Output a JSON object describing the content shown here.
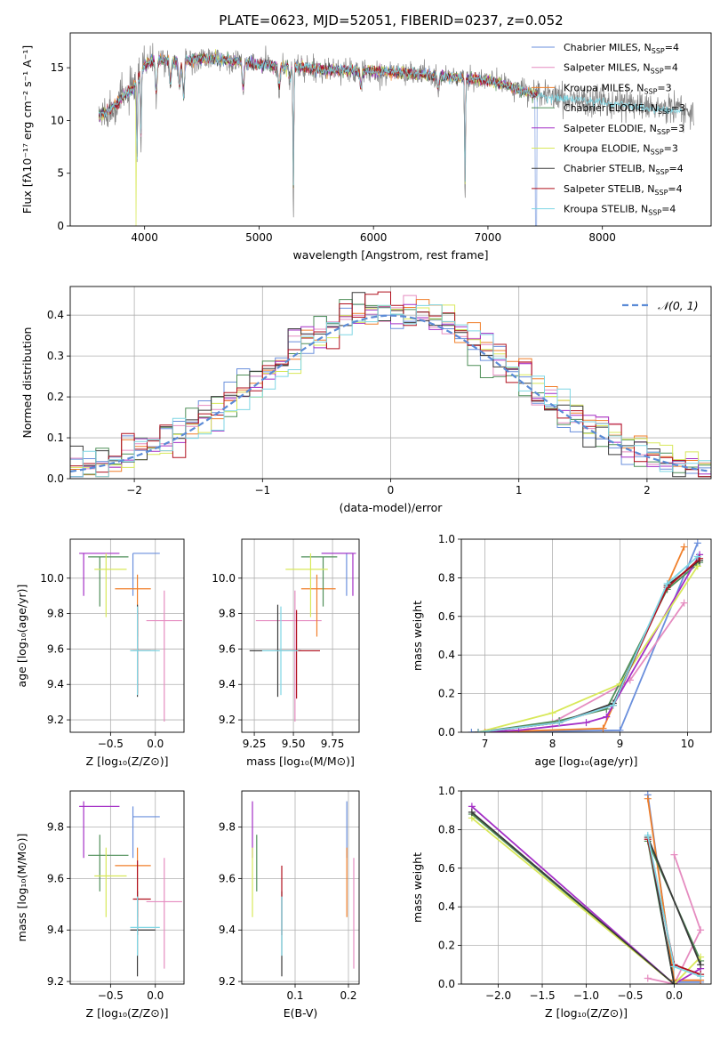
{
  "title": "PLATE=0623, MJD=52051, FIBERID=0237, z=0.052",
  "models": [
    {
      "name": "Chabrier MILES",
      "nssp": "4",
      "color": "#6a8fdc"
    },
    {
      "name": "Salpeter MILES",
      "nssp": "4",
      "color": "#e58cc0"
    },
    {
      "name": "Kroupa MILES",
      "nssp": "3",
      "color": "#f07f2a"
    },
    {
      "name": "Chabrier ELODIE",
      "nssp": "3",
      "color": "#4f8f58"
    },
    {
      "name": "Salpeter ELODIE",
      "nssp": "3",
      "color": "#a42fc6"
    },
    {
      "name": "Kroupa ELODIE",
      "nssp": "3",
      "color": "#d8e85a"
    },
    {
      "name": "Chabrier STELIB",
      "nssp": "4",
      "color": "#3a3a3a"
    },
    {
      "name": "Salpeter STELIB",
      "nssp": "4",
      "color": "#b0101e"
    },
    {
      "name": "Kroupa STELIB",
      "nssp": "4",
      "color": "#7fd6e4"
    }
  ],
  "legend_sub": "SSP",
  "legend_prefix": "N",
  "chart_data": [
    {
      "id": "spectrum",
      "type": "line",
      "title": "PLATE=0623, MJD=52051, FIBERID=0237, z=0.052",
      "xlabel": "wavelength [Angstrom, rest frame]",
      "ylabel": "Flux [fλ10⁻¹⁷ erg cm⁻² s⁻¹ A⁻¹]",
      "xlim": [
        3350,
        8950
      ],
      "ylim": [
        0,
        18.3
      ],
      "xticks": [
        4000,
        5000,
        6000,
        7000,
        8000
      ],
      "yticks": [
        0,
        5,
        10,
        15
      ],
      "data_color": "#808080",
      "data_range": [
        3600,
        8800
      ],
      "anchors_x": [
        3600,
        3700,
        3800,
        3900,
        4000,
        4100,
        4300,
        4500,
        4800,
        5000,
        5300,
        5600,
        6000,
        6400,
        6800,
        7000,
        7200,
        7400,
        7600,
        7800,
        8000,
        8200,
        8400,
        8600,
        8800
      ],
      "anchors_y": [
        10.5,
        11.0,
        12.2,
        13.0,
        15.3,
        15.8,
        15.6,
        15.9,
        15.6,
        15.3,
        15.1,
        14.8,
        14.7,
        14.4,
        14.0,
        13.8,
        13.2,
        12.5,
        12.2,
        12.0,
        11.8,
        11.6,
        11.2,
        11.0,
        10.8
      ],
      "absorption": [
        [
          3934,
          9
        ],
        [
          3968,
          8
        ],
        [
          4101,
          4
        ],
        [
          4226,
          2.5
        ],
        [
          4305,
          3
        ],
        [
          4340,
          4
        ],
        [
          4861,
          3
        ],
        [
          5175,
          2.5
        ],
        [
          5270,
          1.5
        ],
        [
          5300,
          14
        ],
        [
          5890,
          2
        ],
        [
          6563,
          1.5
        ],
        [
          6800,
          12
        ]
      ]
    },
    {
      "id": "residuals",
      "type": "histogram",
      "xlabel": "(data-model)/error",
      "ylabel": "Normed distribution",
      "xlim": [
        -2.5,
        2.5
      ],
      "ylim": [
        0,
        0.47
      ],
      "xticks": [
        -2,
        -1,
        0,
        1,
        2
      ],
      "yticks": [
        0,
        0.1,
        0.2,
        0.3,
        0.4
      ],
      "bin_width": 0.1,
      "reference": {
        "name": "𝒩(0, 1)",
        "color": "#5b8bd6"
      }
    },
    {
      "id": "age_vs_Z",
      "type": "errorbar",
      "xlabel": "Z [log₁₀(Z/Z⊙)]",
      "ylabel": "age  [log₁₀(age/yr)]",
      "xlim": [
        -0.95,
        0.32
      ],
      "ylim": [
        9.13,
        10.22
      ],
      "xticks": [
        -0.5,
        0.0
      ],
      "yticks": [
        9.2,
        9.4,
        9.6,
        9.8,
        10.0
      ],
      "points": [
        {
          "m": 0,
          "x": -0.25,
          "y": 10.14,
          "xe": [
            -0.25,
            0.05
          ],
          "ye": [
            9.9,
            10.14
          ]
        },
        {
          "m": 1,
          "x": 0.1,
          "y": 9.76,
          "xe": [
            -0.1,
            0.3
          ],
          "ye": [
            9.19,
            9.93
          ]
        },
        {
          "m": 2,
          "x": -0.2,
          "y": 9.94,
          "xe": [
            -0.45,
            -0.05
          ],
          "ye": [
            9.67,
            10.02
          ]
        },
        {
          "m": 3,
          "x": -0.62,
          "y": 10.12,
          "xe": [
            -0.75,
            -0.3
          ],
          "ye": [
            9.84,
            10.12
          ]
        },
        {
          "m": 4,
          "x": -0.8,
          "y": 10.14,
          "xe": [
            -0.85,
            -0.4
          ],
          "ye": [
            9.9,
            10.14
          ]
        },
        {
          "m": 5,
          "x": -0.55,
          "y": 10.05,
          "xe": [
            -0.68,
            -0.32
          ],
          "ye": [
            9.78,
            10.14
          ]
        },
        {
          "m": 6,
          "x": -0.2,
          "y": 9.59,
          "xe": [
            -0.28,
            0.0
          ],
          "ye": [
            9.33,
            9.85
          ]
        },
        {
          "m": 7,
          "x": -0.2,
          "y": 9.59,
          "xe": [
            -0.25,
            -0.05
          ],
          "ye": [
            9.35,
            9.82
          ]
        },
        {
          "m": 8,
          "x": -0.2,
          "y": 9.59,
          "xe": [
            -0.28,
            0.05
          ],
          "ye": [
            9.34,
            9.84
          ]
        }
      ]
    },
    {
      "id": "age_vs_mass",
      "type": "errorbar",
      "xlabel": "mass [log₁₀(M/M⊙)]",
      "ylabel": "",
      "xlim": [
        9.17,
        9.92
      ],
      "ylim": [
        9.13,
        10.22
      ],
      "xticks": [
        9.25,
        9.5,
        9.75
      ],
      "yticks": [
        9.2,
        9.4,
        9.6,
        9.8,
        10.0
      ],
      "points": [
        {
          "m": 0,
          "x": 9.84,
          "y": 10.14,
          "xe": [
            9.68,
            9.88
          ],
          "ye": [
            9.9,
            10.14
          ]
        },
        {
          "m": 1,
          "x": 9.51,
          "y": 9.76,
          "xe": [
            9.26,
            9.68
          ],
          "ye": [
            9.19,
            9.93
          ]
        },
        {
          "m": 2,
          "x": 9.65,
          "y": 9.94,
          "xe": [
            9.55,
            9.77
          ],
          "ye": [
            9.67,
            10.02
          ]
        },
        {
          "m": 3,
          "x": 9.69,
          "y": 10.12,
          "xe": [
            9.55,
            9.78
          ],
          "ye": [
            9.84,
            10.12
          ]
        },
        {
          "m": 4,
          "x": 9.88,
          "y": 10.14,
          "xe": [
            9.68,
            9.9
          ],
          "ye": [
            9.9,
            10.14
          ]
        },
        {
          "m": 5,
          "x": 9.61,
          "y": 10.05,
          "xe": [
            9.45,
            9.72
          ],
          "ye": [
            9.78,
            10.14
          ]
        },
        {
          "m": 6,
          "x": 9.4,
          "y": 9.59,
          "xe": [
            9.22,
            9.55
          ],
          "ye": [
            9.33,
            9.85
          ]
        },
        {
          "m": 7,
          "x": 9.52,
          "y": 9.59,
          "xe": [
            9.38,
            9.67
          ],
          "ye": [
            9.32,
            9.82
          ]
        },
        {
          "m": 8,
          "x": 9.42,
          "y": 9.59,
          "xe": [
            9.3,
            9.53
          ],
          "ye": [
            9.34,
            9.84
          ]
        }
      ]
    },
    {
      "id": "mass_weight_vs_age",
      "type": "line",
      "xlabel": "age  [log₁₀(age/yr)]",
      "ylabel": "mass weight",
      "xlim": [
        6.65,
        10.35
      ],
      "ylim": [
        0,
        1.0
      ],
      "xticks": [
        7,
        8,
        9,
        10
      ],
      "yticks": [
        0,
        0.2,
        0.4,
        0.6,
        0.8,
        1.0
      ],
      "series": [
        {
          "m": 0,
          "x": [
            6.8,
            9.0,
            10.15
          ],
          "y": [
            0.0,
            0.01,
            0.98
          ]
        },
        {
          "m": 1,
          "x": 7.0,
          "note": "",
          "xs": [
            7.0,
            8.0,
            9.15,
            9.95
          ],
          "ys": [
            0.0,
            0.05,
            0.27,
            0.67
          ]
        },
        {
          "m": 2,
          "xs": [
            7.0,
            8.75,
            9.95
          ],
          "ys": [
            0.0,
            0.02,
            0.96
          ]
        },
        {
          "m": 3,
          "xs": [
            6.9,
            8.1,
            8.8,
            9.7,
            10.18
          ],
          "ys": [
            0.0,
            0.06,
            0.12,
            0.74,
            0.88
          ]
        },
        {
          "m": 4,
          "xs": [
            6.9,
            7.5,
            8.5,
            8.8,
            10.18
          ],
          "ys": [
            0.0,
            0.01,
            0.05,
            0.08,
            0.92
          ]
        },
        {
          "m": 5,
          "xs": [
            6.9,
            8.0,
            9.0,
            10.15
          ],
          "ys": [
            0.0,
            0.1,
            0.25,
            0.86
          ]
        },
        {
          "m": 6,
          "xs": [
            6.9,
            8.1,
            8.9,
            9.7,
            10.18
          ],
          "ys": [
            0.0,
            0.05,
            0.15,
            0.76,
            0.89
          ]
        },
        {
          "m": 7,
          "xs": [
            6.9,
            8.1,
            8.9,
            9.7,
            10.18
          ],
          "ys": [
            0.0,
            0.05,
            0.14,
            0.75,
            0.9
          ]
        },
        {
          "m": 8,
          "xs": [
            6.9,
            8.1,
            8.9,
            9.7,
            10.15
          ],
          "ys": [
            0.0,
            0.05,
            0.14,
            0.77,
            0.91
          ]
        }
      ]
    },
    {
      "id": "mass_vs_Z",
      "type": "errorbar",
      "xlabel": "Z [log₁₀(Z/Z⊙)]",
      "ylabel": "mass [log₁₀(M/M⊙)]",
      "xlim": [
        -0.95,
        0.32
      ],
      "ylim": [
        9.19,
        9.94
      ],
      "xticks": [
        -0.5,
        0.0
      ],
      "yticks": [
        9.2,
        9.4,
        9.6,
        9.8
      ],
      "points": [
        {
          "m": 0,
          "x": -0.25,
          "y": 9.84,
          "xe": [
            -0.25,
            0.05
          ],
          "ye": [
            9.68,
            9.88
          ]
        },
        {
          "m": 1,
          "x": 0.1,
          "y": 9.51,
          "xe": [
            -0.1,
            0.3
          ],
          "ye": [
            9.25,
            9.68
          ]
        },
        {
          "m": 2,
          "x": -0.2,
          "y": 9.65,
          "xe": [
            -0.45,
            -0.05
          ],
          "ye": [
            9.45,
            9.72
          ]
        },
        {
          "m": 3,
          "x": -0.62,
          "y": 9.69,
          "xe": [
            -0.75,
            -0.3
          ],
          "ye": [
            9.55,
            9.77
          ]
        },
        {
          "m": 4,
          "x": -0.8,
          "y": 9.88,
          "xe": [
            -0.85,
            -0.4
          ],
          "ye": [
            9.68,
            9.9
          ]
        },
        {
          "m": 5,
          "x": -0.55,
          "y": 9.61,
          "xe": [
            -0.68,
            -0.32
          ],
          "ye": [
            9.45,
            9.72
          ]
        },
        {
          "m": 6,
          "x": -0.2,
          "y": 9.4,
          "xe": [
            -0.28,
            0.0
          ],
          "ye": [
            9.22,
            9.55
          ]
        },
        {
          "m": 7,
          "x": -0.2,
          "y": 9.52,
          "xe": [
            -0.25,
            -0.05
          ],
          "ye": [
            9.38,
            9.67
          ]
        },
        {
          "m": 8,
          "x": -0.2,
          "y": 9.41,
          "xe": [
            -0.28,
            0.05
          ],
          "ye": [
            9.3,
            9.53
          ]
        }
      ]
    },
    {
      "id": "mass_vs_ebv",
      "type": "errorbar",
      "xlabel": "E(B-V)",
      "ylabel": "",
      "xlim": [
        0.0,
        0.22
      ],
      "ylim": [
        9.19,
        9.94
      ],
      "xticks": [
        0.1,
        0.2
      ],
      "yticks": [
        9.2,
        9.4,
        9.6,
        9.8
      ],
      "points": [
        {
          "m": 0,
          "x": 0.197,
          "y": 9.84,
          "ye": [
            9.68,
            9.9
          ]
        },
        {
          "m": 1,
          "x": 0.21,
          "y": 9.51,
          "ye": [
            9.25,
            9.68
          ]
        },
        {
          "m": 2,
          "x": 0.197,
          "y": 9.65,
          "ye": [
            9.45,
            9.72
          ]
        },
        {
          "m": 3,
          "x": 0.028,
          "y": 9.69,
          "ye": [
            9.55,
            9.77
          ]
        },
        {
          "m": 4,
          "x": 0.02,
          "y": 9.88,
          "ye": [
            9.68,
            9.9
          ]
        },
        {
          "m": 5,
          "x": 0.02,
          "y": 9.61,
          "ye": [
            9.45,
            9.72
          ]
        },
        {
          "m": 6,
          "x": 0.075,
          "y": 9.4,
          "ye": [
            9.22,
            9.55
          ]
        },
        {
          "m": 7,
          "x": 0.075,
          "y": 9.52,
          "ye": [
            9.38,
            9.65
          ]
        },
        {
          "m": 8,
          "x": 0.075,
          "y": 9.41,
          "ye": [
            9.3,
            9.53
          ]
        }
      ]
    },
    {
      "id": "mass_weight_vs_Z",
      "type": "line",
      "xlabel": "Z [log₁₀(Z/Z⊙)]",
      "ylabel": "mass weight",
      "xlim": [
        -2.42,
        0.42
      ],
      "ylim": [
        0,
        1.0
      ],
      "xticks": [
        -2.0,
        -1.5,
        -1.0,
        -0.5,
        0.0
      ],
      "yticks": [
        0,
        0.2,
        0.4,
        0.6,
        0.8,
        1.0
      ],
      "series": [
        {
          "m": 0,
          "xs": [
            -0.3,
            0.0,
            0.3
          ],
          "ys": [
            0.98,
            0.01,
            0.01
          ]
        },
        {
          "m": 1,
          "xs": [
            -0.3,
            0.0,
            0.3,
            0.0
          ],
          "ys": [
            0.03,
            0.0,
            0.28,
            0.67
          ]
        },
        {
          "m": 2,
          "xs": [
            -0.3,
            0.0,
            0.3
          ],
          "ys": [
            0.96,
            0.02,
            0.02
          ]
        },
        {
          "m": 3,
          "xs": [
            -2.3,
            0.0,
            -0.3,
            0.3
          ],
          "ys": [
            0.88,
            0.0,
            0.74,
            0.12
          ]
        },
        {
          "m": 4,
          "xs": [
            -2.3,
            0.0,
            0.3
          ],
          "ys": [
            0.92,
            0.0,
            0.08
          ]
        },
        {
          "m": 5,
          "xs": [
            -2.3,
            0.0,
            0.3
          ],
          "ys": [
            0.86,
            0.0,
            0.14
          ]
        },
        {
          "m": 6,
          "xs": [
            -2.3,
            0.0,
            -0.3,
            0.3
          ],
          "ys": [
            0.89,
            0.0,
            0.76,
            0.1
          ]
        },
        {
          "m": 7,
          "xs": [
            -0.3,
            0.0,
            0.3
          ],
          "ys": [
            0.75,
            0.1,
            0.05
          ]
        },
        {
          "m": 8,
          "xs": [
            -0.3,
            0.0,
            0.3
          ],
          "ys": [
            0.77,
            0.09,
            0.04
          ]
        }
      ]
    }
  ]
}
